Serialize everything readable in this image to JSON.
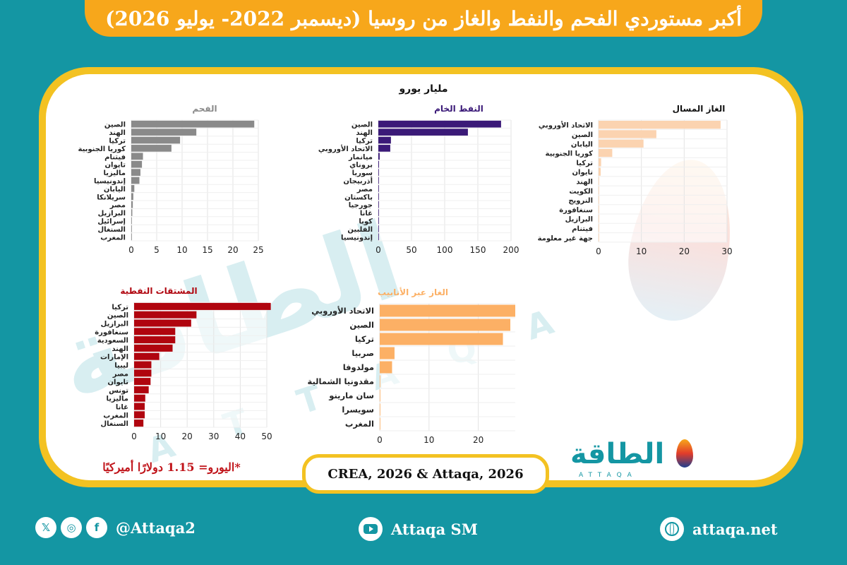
{
  "title": "أكبر مستوردي الفحم والنفط والغاز من روسيا (ديسمبر 2022- يوليو 2026)",
  "unit": "مليار يورو",
  "source": "CREA, 2026 & Attaqa, 2026",
  "note": "*اليورو= 1.15 دولارًا أميركيًا",
  "watermark": {
    "ar": "الطاقة",
    "en": "A T T A Q A"
  },
  "logo": {
    "ar": "الطاقة",
    "en": "ATTAQA"
  },
  "social": {
    "handle": "@Attaqa2",
    "youtube": "Attaqa SM",
    "website": "attaqa.net",
    "icons": [
      "x-icon",
      "instagram-icon",
      "facebook-icon",
      "youtube-icon",
      "globe-icon"
    ],
    "icon_glyphs": {
      "x": "𝕏",
      "instagram": "◎",
      "facebook": "f"
    }
  },
  "colors": {
    "banner": "#f7a71b",
    "frame": "#f3c222",
    "background": "#1496a3",
    "coal": "#8a8a8a",
    "crude": "#3b1a78",
    "lng": "#fbd3b0",
    "products": "#b0050f",
    "pipeline": "#fcb065"
  },
  "chart_data": [
    {
      "id": "coal",
      "type": "bar",
      "orientation": "horizontal",
      "title": "الفحم",
      "title_color": "#8a8a8a",
      "bar_color": "#8a8a8a",
      "categories": [
        "الصين",
        "الهند",
        "تركيا",
        "كوريا الجنوبية",
        "فيتنام",
        "تايوان",
        "ماليزيا",
        "إندونيسيا",
        "اليابان",
        "سريلانكا",
        "مصر",
        "البرازيل",
        "إسرائيل",
        "السنغال",
        "المغرب"
      ],
      "values": [
        24.2,
        12.8,
        9.6,
        7.9,
        2.3,
        2.1,
        1.8,
        1.6,
        0.6,
        0.4,
        0.3,
        0.2,
        0.1,
        0.1,
        0.1
      ],
      "xlim": [
        0,
        25
      ],
      "xticks": [
        0,
        5,
        10,
        15,
        20,
        25
      ],
      "grid": true
    },
    {
      "id": "crude",
      "type": "bar",
      "orientation": "horizontal",
      "title": "النفط الخام",
      "title_color": "#3b1a78",
      "bar_color": "#3b1a78",
      "categories": [
        "الصين",
        "الهند",
        "تركيا",
        "الاتحاد الأوروبي",
        "ميانمار",
        "بروناي",
        "سوريا",
        "أذربيجان",
        "مصر",
        "باكستان",
        "جورجيا",
        "غانا",
        "كوبا",
        "الفلبين",
        "إندونيسيا"
      ],
      "values": [
        185,
        135,
        19,
        18,
        2,
        1,
        0.5,
        0.5,
        0.5,
        0.5,
        0.3,
        0.3,
        0.2,
        0.2,
        0.1
      ],
      "xlim": [
        0,
        200
      ],
      "xticks": [
        0,
        50,
        100,
        150,
        200
      ],
      "grid": true
    },
    {
      "id": "lng",
      "type": "bar",
      "orientation": "horizontal",
      "title": "الغاز المسال",
      "title_color": "#111111",
      "bar_color": "#fbd3b0",
      "categories": [
        "الاتحاد الأوروبي",
        "الصين",
        "اليابان",
        "كوريا الجنوبية",
        "تركيا",
        "تايوان",
        "الهند",
        "الكويت",
        "النرويج",
        "سنغافورة",
        "البرازيل",
        "فيتنام",
        "جهة غير معلومة"
      ],
      "values": [
        28.5,
        13.5,
        10.5,
        3.2,
        0.6,
        0.5,
        0.1,
        0.1,
        0.1,
        0.1,
        0.1,
        0.1,
        0.1
      ],
      "xlim": [
        0,
        30
      ],
      "xticks": [
        0,
        10,
        20,
        30
      ],
      "grid": true
    },
    {
      "id": "products",
      "type": "bar",
      "orientation": "horizontal",
      "title": "المشتقات النفطية",
      "title_color": "#b0050f",
      "bar_color": "#b0050f",
      "categories": [
        "تركيا",
        "الصين",
        "البرازيل",
        "سنغافورة",
        "السعودية",
        "الهند",
        "الإمارات",
        "ليبيا",
        "مصر",
        "تايوان",
        "تونس",
        "ماليزيا",
        "غانا",
        "المغرب",
        "السنغال"
      ],
      "values": [
        51.5,
        23.5,
        21.5,
        15.5,
        15.5,
        14.5,
        9.5,
        6.5,
        6.5,
        6.2,
        5.5,
        4.2,
        4.0,
        4.0,
        3.5
      ],
      "xlim": [
        0,
        50
      ],
      "xticks": [
        0,
        10,
        20,
        30,
        40,
        50
      ],
      "grid": true
    },
    {
      "id": "pipeline",
      "type": "bar",
      "orientation": "horizontal",
      "title": "الغاز عبر الأنابيب",
      "title_color": "#fcb065",
      "bar_color": "#fcb065",
      "categories": [
        "الاتحاد الأوروبي",
        "الصين",
        "تركيا",
        "صربيا",
        "مولدوفا",
        "مقدونيا الشمالية",
        "سان مارينو",
        "سويسرا",
        "المغرب"
      ],
      "values": [
        27.5,
        26.5,
        25.0,
        3.0,
        2.5,
        0.1,
        0.1,
        0.1,
        0.1
      ],
      "xlim": [
        0,
        27.5
      ],
      "xticks": [
        0,
        10,
        20
      ],
      "grid": true
    }
  ]
}
